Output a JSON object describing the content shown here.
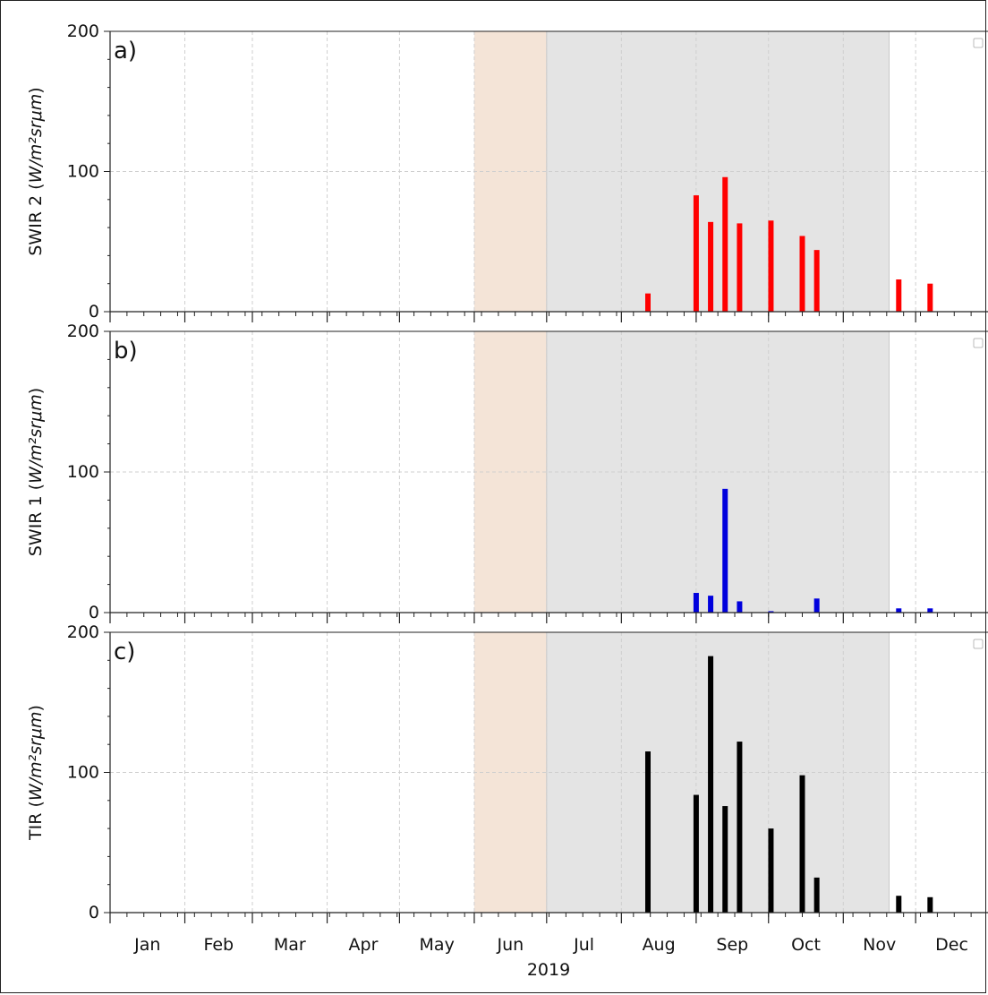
{
  "chart_data": {
    "type": "bar",
    "year": "2019",
    "months": [
      "Jan",
      "Feb",
      "Mar",
      "Apr",
      "May",
      "Jun",
      "Jul",
      "Aug",
      "Sep",
      "Oct",
      "Nov",
      "Dec"
    ],
    "x_range": [
      "2019-01-01",
      "2019-12-31"
    ],
    "grid": true,
    "shaded_periods": [
      {
        "start": "2019-06-01",
        "end": "2019-07-01",
        "color": "#f4e4d7"
      },
      {
        "start": "2019-07-01",
        "end": "2019-11-20",
        "color": "#e4e4e4"
      }
    ],
    "panels": [
      {
        "label": "a)",
        "ylabel_prefix": "SWIR 2 (",
        "ylabel_unit": "W/m²srμm",
        "ylabel_suffix": ")",
        "ylim": [
          0,
          200
        ],
        "yticks": [
          0,
          100,
          200
        ],
        "color": "#ff0000",
        "dates": [
          "2019-08-12",
          "2019-09-01",
          "2019-09-07",
          "2019-09-13",
          "2019-09-19",
          "2019-10-02",
          "2019-10-15",
          "2019-10-21",
          "2019-11-24",
          "2019-12-07"
        ],
        "values": [
          13,
          83,
          64,
          96,
          63,
          65,
          54,
          44,
          23,
          20
        ]
      },
      {
        "label": "b)",
        "ylabel_prefix": "SWIR 1 (",
        "ylabel_unit": "W/m²srμm",
        "ylabel_suffix": ")",
        "ylim": [
          0,
          200
        ],
        "yticks": [
          0,
          100,
          200
        ],
        "color": "#0000dd",
        "dates": [
          "2019-09-01",
          "2019-09-07",
          "2019-09-13",
          "2019-09-19",
          "2019-10-02",
          "2019-10-21",
          "2019-11-24",
          "2019-12-07"
        ],
        "values": [
          14,
          12,
          88,
          8,
          1,
          10,
          3,
          3
        ]
      },
      {
        "label": "c)",
        "ylabel_prefix": "TIR (",
        "ylabel_unit": "W/m²srμm",
        "ylabel_suffix": ")",
        "ylim": [
          0,
          200
        ],
        "yticks": [
          0,
          100,
          200
        ],
        "color": "#000000",
        "dates": [
          "2019-08-12",
          "2019-09-01",
          "2019-09-07",
          "2019-09-13",
          "2019-09-19",
          "2019-10-02",
          "2019-10-15",
          "2019-10-21",
          "2019-11-24",
          "2019-12-07"
        ],
        "values": [
          115,
          84,
          183,
          76,
          122,
          60,
          98,
          25,
          12,
          11
        ]
      }
    ]
  }
}
